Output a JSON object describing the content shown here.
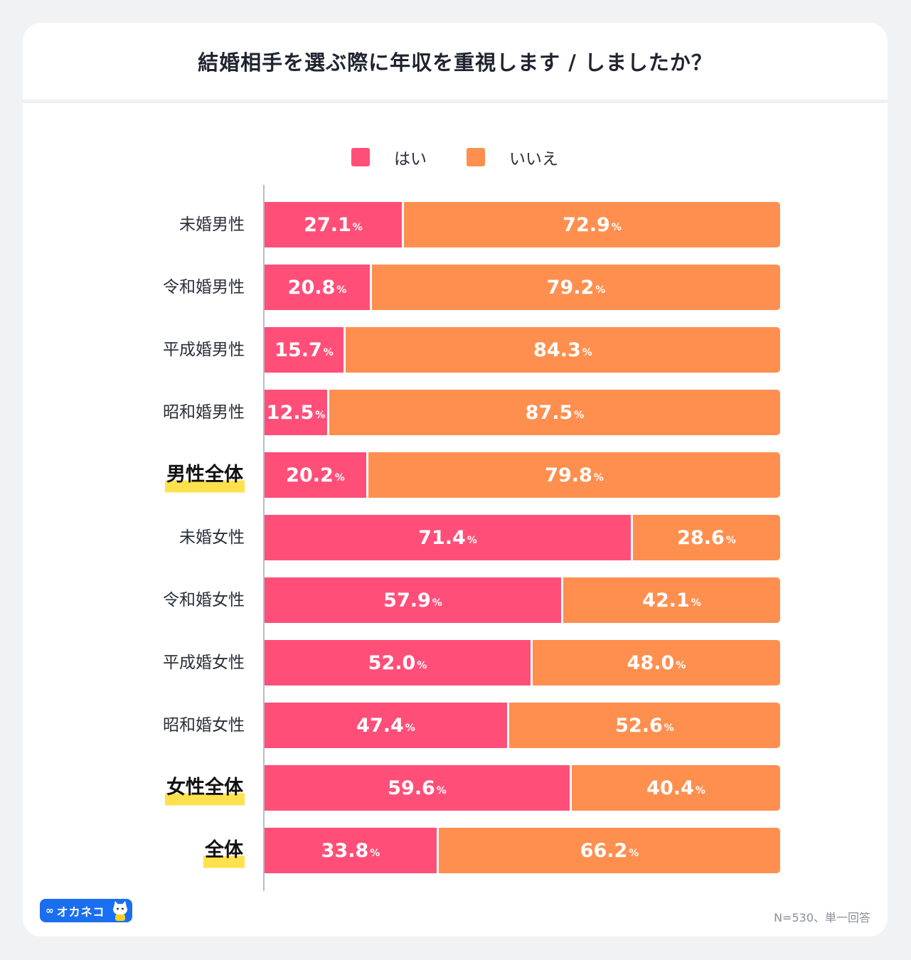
{
  "title": "結婚相手を選ぶ際に年収を重視します / しましたか？",
  "legend": [
    {
      "label": "はい",
      "color": "#ff4f79"
    },
    {
      "label": "いいえ",
      "color": "#ff8f4f"
    }
  ],
  "chart_data": {
    "type": "bar",
    "orientation": "horizontal",
    "stacked": true,
    "percent_stacked": true,
    "unit": "%",
    "categories": [
      "未婚男性",
      "令和婚男性",
      "平成婚男性",
      "昭和婚男性",
      "男性全体",
      "未婚女性",
      "令和婚女性",
      "平成婚女性",
      "昭和婚女性",
      "女性全体",
      "全体"
    ],
    "highlighted_categories": [
      "男性全体",
      "女性全体",
      "全体"
    ],
    "series": [
      {
        "name": "はい",
        "color": "#ff4f79",
        "values": [
          27.1,
          20.8,
          15.7,
          12.5,
          20.2,
          71.4,
          57.9,
          52.0,
          47.4,
          59.6,
          33.8
        ]
      },
      {
        "name": "いいえ",
        "color": "#ff8f4f",
        "values": [
          72.9,
          79.2,
          84.3,
          87.5,
          79.8,
          28.6,
          42.1,
          48.0,
          52.6,
          40.4,
          66.2
        ]
      }
    ],
    "xlim": [
      0,
      100
    ],
    "grid": false,
    "legend_position": "top-center"
  },
  "logo": {
    "text": "オカネコ",
    "mark": "∞"
  },
  "note": "N=530、単一回答"
}
